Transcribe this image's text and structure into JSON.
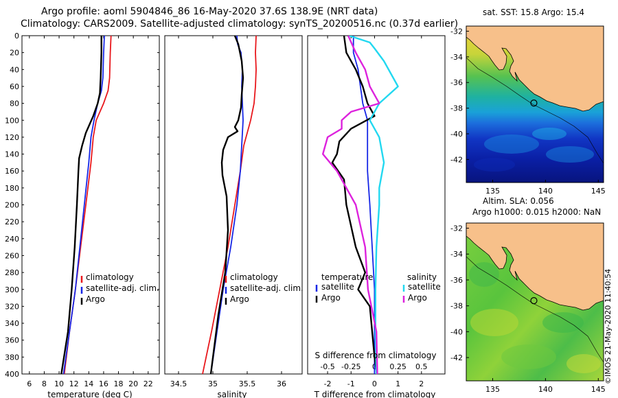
{
  "title": {
    "line1": "Argo profile: aoml 5904846_86 16-May-2020 37.6S 138.9E (NRT data)",
    "line2": "Climatology: CARS2009. Satellite-adjusted climatology: synTS_20200516.nc (0.37d earlier)"
  },
  "colors": {
    "climatology": "#e8161b",
    "satellite": "#1525e6",
    "argo": "#000000",
    "sat_salinity": "#22d8f0",
    "argo_salinity": "#dd22dd",
    "land": "#f7c08a"
  },
  "chart_data": [
    {
      "type": "line",
      "id": "temperature",
      "xlabel": "temperature (deg C)",
      "ylabel": "",
      "xlim": [
        5,
        23.5
      ],
      "ylim": [
        400,
        0
      ],
      "xticks": [
        "6",
        "8",
        "10",
        "12",
        "14",
        "16",
        "18",
        "20",
        "22"
      ],
      "xtick_values": [
        6,
        8,
        10,
        12,
        14,
        16,
        18,
        20,
        22
      ],
      "yticks": [
        "0",
        "20",
        "40",
        "60",
        "80",
        "100",
        "120",
        "140",
        "160",
        "180",
        "200",
        "220",
        "240",
        "260",
        "280",
        "300",
        "320",
        "340",
        "360",
        "380",
        "400"
      ],
      "ytick_values": [
        0,
        20,
        40,
        60,
        80,
        100,
        120,
        140,
        160,
        180,
        200,
        220,
        240,
        260,
        280,
        300,
        320,
        340,
        360,
        380,
        400
      ],
      "legend": [
        "climatology",
        "satellite-adj. clim.",
        "Argo"
      ],
      "series": [
        {
          "name": "climatology",
          "depth": [
            0,
            20,
            50,
            65,
            80,
            100,
            120,
            150,
            200,
            250,
            300,
            350,
            400
          ],
          "values": [
            17.0,
            16.9,
            16.8,
            16.6,
            16.0,
            15.0,
            14.6,
            14.3,
            13.6,
            12.9,
            12.2,
            11.4,
            10.7
          ]
        },
        {
          "name": "satellite-adj. clim.",
          "depth": [
            0,
            20,
            50,
            65,
            80,
            100,
            120,
            150,
            200,
            250,
            300,
            350,
            400
          ],
          "values": [
            16.1,
            16.0,
            15.9,
            15.7,
            15.2,
            14.7,
            14.3,
            14.0,
            13.4,
            12.8,
            12.2,
            11.4,
            10.6
          ]
        },
        {
          "name": "Argo",
          "depth": [
            0,
            20,
            50,
            68,
            80,
            95,
            105,
            115,
            130,
            145,
            160,
            200,
            250,
            300,
            350,
            400
          ],
          "values": [
            15.7,
            15.7,
            15.6,
            15.5,
            15.2,
            14.6,
            14.1,
            13.6,
            13.1,
            12.7,
            12.6,
            12.4,
            12.1,
            11.7,
            11.2,
            10.3
          ]
        }
      ]
    },
    {
      "type": "line",
      "id": "salinity",
      "xlabel": "salinity",
      "ylabel": "",
      "xlim": [
        34.3,
        36.3
      ],
      "ylim": [
        400,
        0
      ],
      "xticks": [
        "34.5",
        "35",
        "35.5",
        "36"
      ],
      "xtick_values": [
        34.5,
        35,
        35.5,
        36
      ],
      "legend": [
        "climatology",
        "satellite-adj. clim.",
        "Argo"
      ],
      "series": [
        {
          "name": "climatology",
          "depth": [
            0,
            20,
            40,
            60,
            80,
            100,
            130,
            160,
            200,
            250,
            300,
            350,
            400
          ],
          "values": [
            35.63,
            35.62,
            35.63,
            35.62,
            35.6,
            35.55,
            35.45,
            35.4,
            35.32,
            35.22,
            35.1,
            34.98,
            34.85
          ]
        },
        {
          "name": "satellite-adj. clim.",
          "depth": [
            0,
            10,
            20,
            40,
            60,
            80,
            100,
            130,
            160,
            200,
            250,
            300,
            350,
            400
          ],
          "values": [
            35.35,
            35.36,
            35.41,
            35.43,
            35.42,
            35.43,
            35.44,
            35.42,
            35.4,
            35.35,
            35.26,
            35.15,
            35.06,
            34.97
          ]
        },
        {
          "name": "Argo",
          "depth": [
            0,
            10,
            30,
            50,
            70,
            85,
            100,
            108,
            113,
            120,
            135,
            150,
            165,
            190,
            230,
            280,
            330,
            400
          ],
          "values": [
            35.32,
            35.37,
            35.42,
            35.44,
            35.42,
            35.41,
            35.37,
            35.32,
            35.36,
            35.22,
            35.15,
            35.13,
            35.14,
            35.2,
            35.22,
            35.18,
            35.08,
            34.97
          ]
        }
      ]
    },
    {
      "type": "line",
      "id": "difference",
      "xlabel": "T difference from climatology",
      "xlabel2": "S difference from climatology",
      "xlim": [
        -2.85,
        3.0
      ],
      "xticks": [
        "-2",
        "-1",
        "0",
        "1",
        "2"
      ],
      "xtick_values": [
        -2,
        -1,
        0,
        1,
        2
      ],
      "s_xticks": [
        "-0.5",
        "-0.25",
        "0",
        "0.25",
        "0.5"
      ],
      "s_xtick_values": [
        -0.5,
        -0.25,
        0,
        0.25,
        0.5
      ],
      "ylim": [
        400,
        0
      ],
      "legend_groups": [
        "temperature",
        "salinity"
      ],
      "legend": [
        "satellite",
        "Argo",
        "satellite",
        "Argo"
      ],
      "series": [
        {
          "name": "temperature satellite",
          "depth": [
            0,
            20,
            40,
            60,
            80,
            100,
            130,
            160,
            200,
            250,
            300,
            350,
            400
          ],
          "values": [
            -0.9,
            -0.9,
            -0.7,
            -0.6,
            -0.5,
            -0.3,
            -0.3,
            -0.3,
            -0.2,
            -0.1,
            0.0,
            0.0,
            0.0
          ]
        },
        {
          "name": "temperature Argo",
          "depth": [
            0,
            20,
            40,
            60,
            80,
            95,
            110,
            125,
            140,
            150,
            170,
            200,
            250,
            280,
            300,
            320,
            350,
            380,
            400
          ],
          "values": [
            -1.3,
            -1.2,
            -0.8,
            -0.5,
            -0.3,
            0.0,
            -1.0,
            -1.5,
            -1.6,
            -1.8,
            -1.3,
            -1.2,
            -0.8,
            -0.4,
            -0.7,
            -0.2,
            -0.1,
            0.0,
            0.1
          ]
        },
        {
          "name": "salinity satellite",
          "depth": [
            0,
            8,
            15,
            30,
            60,
            80,
            100,
            120,
            150,
            180,
            200,
            250,
            300,
            350,
            400
          ],
          "values": [
            -0.27,
            -0.05,
            0.0,
            0.1,
            0.25,
            0.05,
            -0.05,
            0.05,
            0.1,
            0.05,
            0.05,
            0.02,
            0.01,
            0.01,
            0.02
          ]
        },
        {
          "name": "salinity Argo",
          "depth": [
            0,
            20,
            40,
            60,
            80,
            90,
            100,
            110,
            120,
            140,
            160,
            200,
            250,
            300,
            350,
            400
          ],
          "values": [
            -0.28,
            -0.2,
            -0.1,
            -0.05,
            0.05,
            -0.25,
            -0.35,
            -0.35,
            -0.5,
            -0.55,
            -0.4,
            -0.2,
            -0.1,
            -0.07,
            0.02,
            0.03
          ]
        }
      ]
    }
  ],
  "map_sst": {
    "title": "sat. SST: 15.8 Argo: 15.4",
    "xticks": [
      "135",
      "140",
      "145"
    ],
    "xtick_values": [
      135,
      140,
      145
    ],
    "yticks": [
      "-32",
      "-34",
      "-36",
      "-38",
      "-40",
      "-42"
    ],
    "ytick_values": [
      -32,
      -34,
      -36,
      -38,
      -40,
      -42
    ],
    "lon_range": [
      132.5,
      145.5
    ],
    "lat_range": [
      -43.8,
      -31.6
    ],
    "argo_lon": 138.9,
    "argo_lat": -37.6
  },
  "map_sla": {
    "title_line1": "Altim. SLA: 0.056",
    "title_line2": "Argo h1000: 0.015 h2000: NaN",
    "xticks": [
      "135",
      "140",
      "145"
    ],
    "xtick_values": [
      135,
      140,
      145
    ],
    "yticks": [
      "-32",
      "-34",
      "-36",
      "-38",
      "-40",
      "-42"
    ],
    "ytick_values": [
      -32,
      -34,
      -36,
      -38,
      -40,
      -42
    ],
    "lon_range": [
      132.5,
      145.5
    ],
    "lat_range": [
      -43.8,
      -31.6
    ],
    "argo_lon": 138.9,
    "argo_lat": -37.6
  },
  "credit": "©IMOS 21-May-2020 11:40:54"
}
